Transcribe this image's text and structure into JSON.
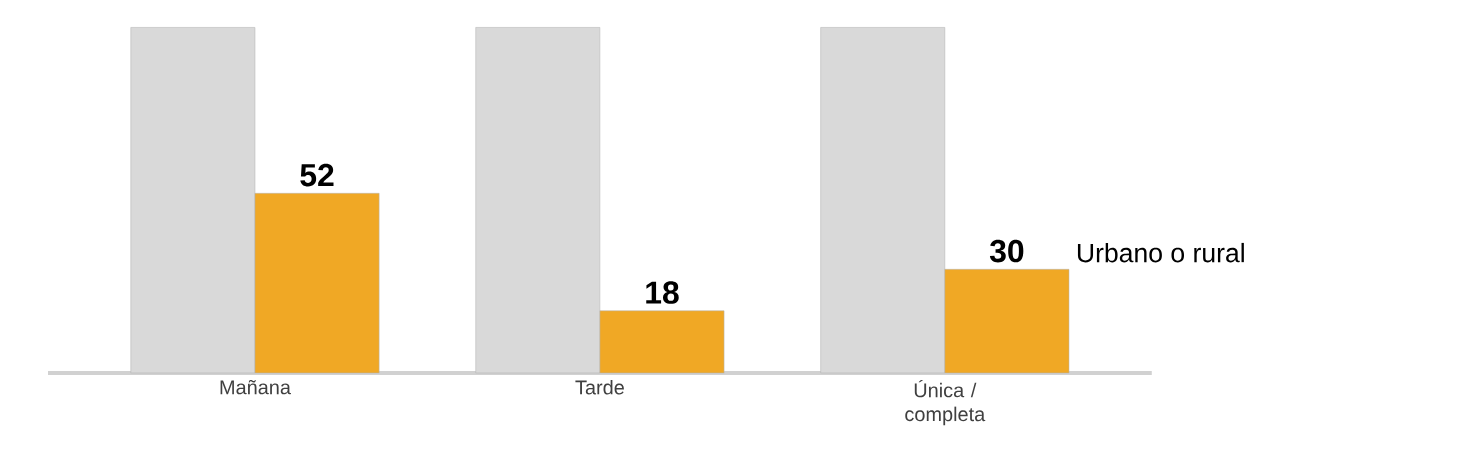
{
  "chart_data": {
    "type": "bar",
    "ylim": [
      0,
      100
    ],
    "tick_labels": "x",
    "categories": [
      "Mañana",
      "Tarde",
      "Única / completa"
    ],
    "series": [
      {
        "color": "#d9d9d9",
        "values": [
          100,
          100,
          100
        ]
      },
      {
        "name": "Urbano o rural",
        "color": "#f0a825",
        "values": [
          52,
          18,
          30
        ],
        "value_labels": [
          "52",
          "18",
          "30"
        ]
      }
    ]
  }
}
